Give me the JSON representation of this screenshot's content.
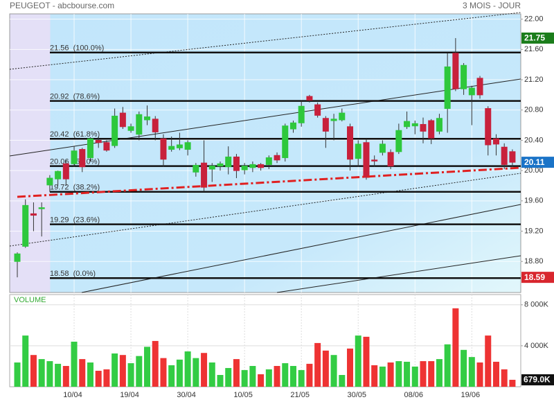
{
  "header": {
    "title": "PEUGEOT - abcbourse.com",
    "period": "3 MOIS - JOUR"
  },
  "chart_data": [
    {
      "type": "candlestick",
      "categories": [
        null,
        null,
        null,
        null,
        null,
        null,
        null,
        "10/04",
        null,
        null,
        null,
        null,
        null,
        null,
        "19/04",
        null,
        null,
        null,
        null,
        null,
        null,
        "30/04",
        null,
        null,
        null,
        null,
        null,
        null,
        "10/05",
        null,
        null,
        null,
        null,
        null,
        null,
        "21/05",
        null,
        null,
        null,
        null,
        null,
        null,
        "30/05",
        null,
        null,
        null,
        null,
        null,
        null,
        "08/06",
        null,
        null,
        null,
        null,
        null,
        null,
        "19/06",
        null,
        null,
        null,
        null,
        null
      ],
      "open": [
        18.8,
        19.0,
        19.43,
        19.5,
        19.81,
        19.89,
        20.09,
        20.09,
        20.28,
        20.17,
        20.4,
        20.37,
        20.33,
        20.76,
        20.53,
        20.48,
        20.67,
        20.68,
        20.42,
        20.28,
        20.3,
        20.28,
        19.98,
        20.1,
        20.02,
        20.06,
        20.05,
        20.18,
        20.01,
        20.04,
        20.08,
        20.08,
        20.2,
        20.17,
        20.55,
        20.63,
        20.98,
        20.87,
        20.69,
        20.66,
        20.67,
        20.58,
        20.16,
        20.37,
        20.14,
        20.24,
        20.24,
        20.25,
        20.58,
        20.59,
        20.61,
        20.66,
        20.52,
        20.82,
        21.55,
        21.08,
        21.0,
        21.22,
        20.82,
        20.42,
        20.31,
        20.25
      ],
      "high": [
        18.92,
        19.62,
        19.58,
        19.58,
        19.94,
        20.0,
        20.14,
        20.32,
        20.3,
        20.44,
        20.45,
        20.4,
        20.82,
        20.84,
        20.62,
        20.78,
        20.86,
        20.72,
        20.48,
        20.45,
        20.5,
        20.4,
        20.1,
        20.4,
        20.1,
        20.12,
        20.32,
        20.22,
        20.1,
        20.12,
        20.1,
        20.2,
        20.24,
        20.62,
        20.66,
        20.92,
        21.0,
        20.9,
        20.72,
        20.75,
        20.82,
        20.62,
        20.4,
        20.42,
        20.2,
        20.4,
        20.28,
        20.62,
        20.78,
        20.66,
        20.7,
        20.68,
        20.75,
        21.55,
        21.75,
        21.42,
        21.12,
        21.25,
        20.85,
        20.48,
        20.36,
        20.28
      ],
      "low": [
        18.59,
        18.98,
        19.2,
        19.13,
        19.72,
        19.8,
        19.8,
        20.05,
        19.98,
        20.12,
        20.3,
        20.25,
        20.3,
        20.55,
        20.5,
        20.4,
        20.6,
        20.4,
        20.05,
        20.25,
        20.27,
        20.2,
        19.92,
        19.72,
        19.85,
        20.0,
        19.95,
        19.9,
        19.95,
        19.98,
        20.0,
        20.02,
        20.1,
        20.12,
        20.5,
        20.58,
        20.9,
        20.7,
        20.3,
        20.4,
        20.65,
        20.0,
        20.05,
        19.88,
        20.05,
        20.2,
        20.02,
        20.22,
        20.55,
        20.48,
        20.36,
        20.35,
        20.48,
        20.5,
        21.05,
        21.0,
        20.6,
        20.95,
        20.2,
        20.2,
        20.02,
        20.05
      ],
      "close": [
        18.9,
        19.54,
        19.41,
        19.51,
        19.9,
        19.99,
        19.89,
        20.26,
        20.05,
        20.42,
        20.37,
        20.27,
        20.72,
        20.58,
        20.58,
        20.74,
        20.71,
        20.51,
        20.15,
        20.32,
        20.34,
        20.37,
        20.07,
        19.78,
        20.06,
        20.09,
        20.18,
        20.0,
        20.06,
        20.08,
        20.04,
        20.17,
        20.14,
        20.59,
        20.63,
        20.85,
        20.93,
        20.73,
        20.52,
        20.68,
        20.76,
        20.15,
        20.35,
        19.91,
        20.13,
        20.35,
        20.06,
        20.53,
        20.65,
        20.62,
        20.52,
        20.43,
        20.69,
        21.37,
        21.08,
        21.39,
        21.09,
        21.0,
        20.34,
        20.35,
        20.08,
        20.11
      ],
      "up_color": "#2ec83c",
      "down_color": "#c8213c",
      "ylim": [
        18.39,
        22.07
      ],
      "yticks": [
        {
          "value": 22.0,
          "label": "22.00"
        },
        {
          "value": 21.6,
          "label": "21.60"
        },
        {
          "value": 21.2,
          "label": "21.20"
        },
        {
          "value": 20.8,
          "label": "20.80"
        },
        {
          "value": 20.4,
          "label": "20.40"
        },
        {
          "value": 20.0,
          "label": "20.00"
        },
        {
          "value": 19.6,
          "label": "19.60"
        },
        {
          "value": 19.2,
          "label": "19.20"
        },
        {
          "value": 18.8,
          "label": "18.80"
        }
      ],
      "grid": true,
      "fibonacci": [
        {
          "value": 21.56,
          "label": "21.56  (100.0%)"
        },
        {
          "value": 20.92,
          "label": "20.92  (78.6%)"
        },
        {
          "value": 20.42,
          "label": "20.42  (61.8%)"
        },
        {
          "value": 20.06,
          "label": "20.06  (50.0%)"
        },
        {
          "value": 19.72,
          "label": "19.72  (38.2%)"
        },
        {
          "value": 19.29,
          "label": "19.29  (23.6%)"
        },
        {
          "value": 18.58,
          "label": "18.58  (0.0%)"
        }
      ],
      "price_markers": [
        {
          "value": 21.75,
          "color": "#1b7d1b"
        },
        {
          "value": 20.11,
          "color": "#1a73c7"
        },
        {
          "value": 18.59,
          "color": "#d8262e"
        }
      ]
    },
    {
      "type": "bar",
      "title": "VOLUME",
      "values": [
        2370,
        5000,
        3100,
        2700,
        2500,
        2240,
        2030,
        4400,
        2700,
        2370,
        1560,
        1700,
        3250,
        3100,
        2300,
        3000,
        3900,
        4470,
        2800,
        2100,
        2650,
        3450,
        2800,
        3300,
        2370,
        1150,
        1830,
        2700,
        1630,
        2030,
        1220,
        1700,
        2030,
        2300,
        2030,
        1630,
        2240,
        4270,
        3530,
        3100,
        1150,
        3730,
        5000,
        4880,
        2100,
        1970,
        2370,
        2500,
        2440,
        1970,
        2500,
        2500,
        2700,
        4140,
        7660,
        3600,
        2900,
        2370,
        5000,
        2440,
        1700,
        679
      ],
      "up_color": "#33cc44",
      "down_color": "#ee3333",
      "ylim": [
        0,
        9000
      ],
      "yticks": [
        {
          "value": 8000,
          "label": "8 000K"
        },
        {
          "value": 4000,
          "label": "4 000K"
        }
      ],
      "marker": {
        "value": 679,
        "label": "679.0K",
        "color": "#111111"
      }
    }
  ]
}
